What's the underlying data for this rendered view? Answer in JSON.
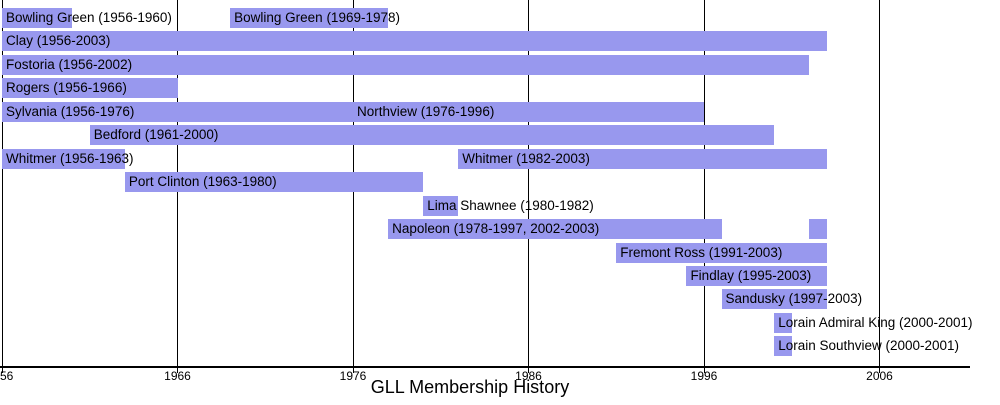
{
  "chart_data": {
    "type": "bar",
    "variant": "horizontal-timeline-gantt",
    "title": "GLL Membership History",
    "xlabel": "",
    "ylabel": "",
    "xlim": [
      1956,
      2011
    ],
    "grid": "vertical-lines-every-decade",
    "legend": "none",
    "bar_color": "#9898ee",
    "text_color": "#000000",
    "x_ticks": [
      {
        "year": 1956,
        "label": "56",
        "clipped": true
      },
      {
        "year": 1966,
        "label": "1966",
        "clipped": false
      },
      {
        "year": 1976,
        "label": "1976",
        "clipped": false
      },
      {
        "year": 1986,
        "label": "1986",
        "clipped": false
      },
      {
        "year": 1996,
        "label": "1996",
        "clipped": false
      },
      {
        "year": 2006,
        "label": "2006",
        "clipped": false
      }
    ],
    "rows": [
      {
        "segments": [
          {
            "label": "Bowling Green (1956-1960)",
            "start": 1956,
            "end": 1960
          },
          {
            "label": "Bowling Green (1969-1978)",
            "start": 1969,
            "end": 1978
          }
        ]
      },
      {
        "segments": [
          {
            "label": "Clay (1956-2003)",
            "start": 1956,
            "end": 2003
          }
        ]
      },
      {
        "segments": [
          {
            "label": "Fostoria (1956-2002)",
            "start": 1956,
            "end": 2002
          }
        ]
      },
      {
        "segments": [
          {
            "label": "Rogers (1956-1966)",
            "start": 1956,
            "end": 1966
          }
        ]
      },
      {
        "segments": [
          {
            "label": "Sylvania (1956-1976)",
            "start": 1956,
            "end": 1976
          },
          {
            "label": "Northview (1976-1996)",
            "start": 1976,
            "end": 1996
          }
        ]
      },
      {
        "segments": [
          {
            "label": "Bedford (1961-2000)",
            "start": 1961,
            "end": 2000
          }
        ]
      },
      {
        "segments": [
          {
            "label": "Whitmer (1956-1963)",
            "start": 1956,
            "end": 1963
          },
          {
            "label": "Whitmer (1982-2003)",
            "start": 1982,
            "end": 2003
          }
        ]
      },
      {
        "segments": [
          {
            "label": "Port Clinton (1963-1980)",
            "start": 1963,
            "end": 1980
          }
        ]
      },
      {
        "segments": [
          {
            "label": "Lima Shawnee (1980-1982)",
            "start": 1980,
            "end": 1982
          }
        ]
      },
      {
        "segments": [
          {
            "label": "Napoleon (1978-1997, 2002-2003)",
            "start": 1978,
            "end": 1997
          },
          {
            "label": "",
            "start": 2002,
            "end": 2003
          }
        ]
      },
      {
        "segments": [
          {
            "label": "Fremont Ross (1991-2003)",
            "start": 1991,
            "end": 2003
          }
        ]
      },
      {
        "segments": [
          {
            "label": "Findlay (1995-2003)",
            "start": 1995,
            "end": 2003
          }
        ]
      },
      {
        "segments": [
          {
            "label": "Sandusky (1997-2003)",
            "start": 1997,
            "end": 2003
          }
        ]
      },
      {
        "segments": [
          {
            "label": "Lorain Admiral King (2000-2001)",
            "start": 2000,
            "end": 2001
          }
        ]
      },
      {
        "segments": [
          {
            "label": "Lorain Southview (2000-2001)",
            "start": 2000,
            "end": 2001
          }
        ]
      }
    ]
  }
}
